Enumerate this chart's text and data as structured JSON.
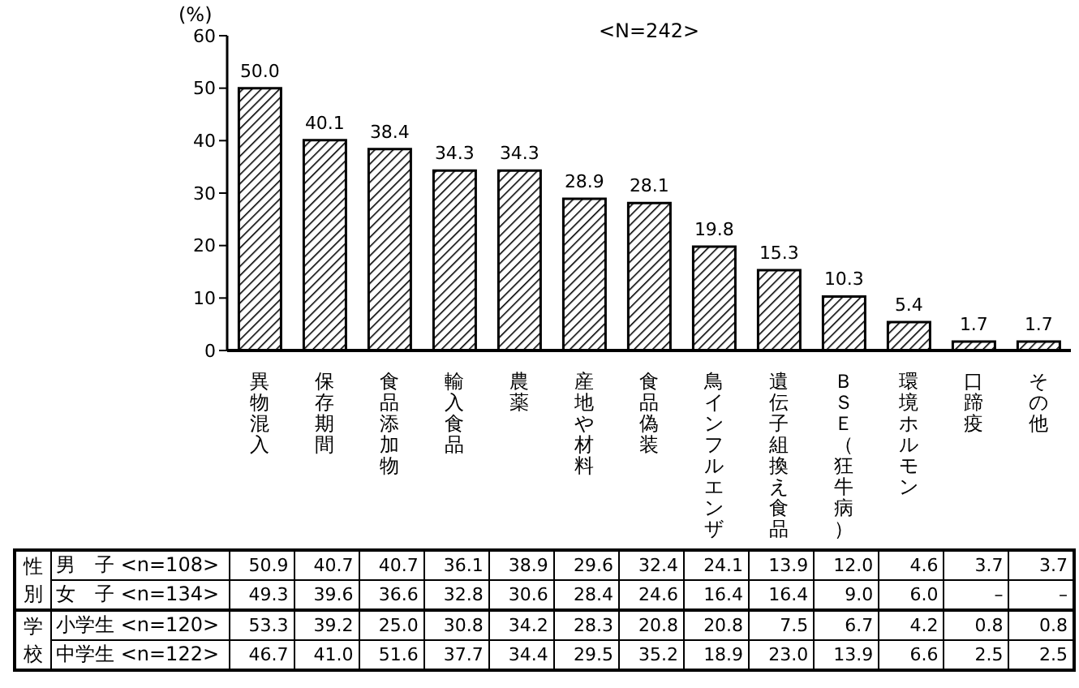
{
  "chart_data": [
    {
      "type": "bar",
      "subtitle": "<N=242>",
      "ylabel": "(%)",
      "categories": [
        "異物混入",
        "保存期間",
        "食品添加物",
        "輸入食品",
        "農薬",
        "産地や材料",
        "食品偽装",
        "鳥インフルエンザ",
        "遺伝子組換え食品",
        "ＢＳＥ（狂牛病）",
        "環境ホルモン",
        "口蹄疫",
        "その他"
      ],
      "series": [
        {
          "color": "#000000",
          "values": [
            50.0,
            40.1,
            38.4,
            34.3,
            34.3,
            28.9,
            28.1,
            19.8,
            15.3,
            10.3,
            5.4,
            1.7,
            1.7
          ],
          "value_labels": [
            "50.0",
            "40.1",
            "38.4",
            "34.3",
            "34.3",
            "28.9",
            "28.1",
            "19.8",
            "15.3",
            "10.3",
            "5.4",
            "1.7",
            "1.7"
          ]
        }
      ],
      "ylim": [
        0,
        60
      ],
      "yticks": [
        0,
        10,
        20,
        30,
        40,
        50,
        60
      ]
    },
    {
      "type": "heatmap",
      "categories": [
        null,
        null,
        null,
        null,
        null,
        null,
        null,
        null,
        null,
        null,
        null,
        null,
        null
      ],
      "y_categories": [
        "男　子 <n=108>",
        "女　子 <n=134>",
        "小学生 <n=120>",
        "中学生 <n=122>"
      ],
      "annotations": [
        "性別",
        "学校"
      ],
      "cells": [
        [
          50.9,
          40.7,
          40.7,
          36.1,
          38.9,
          29.6,
          32.4,
          24.1,
          13.9,
          12.0,
          4.6,
          3.7,
          3.7
        ],
        [
          49.3,
          39.6,
          36.6,
          32.8,
          30.6,
          28.4,
          24.6,
          16.4,
          16.4,
          9.0,
          6.0,
          null,
          null
        ],
        [
          53.3,
          39.2,
          25.0,
          30.8,
          34.2,
          28.3,
          20.8,
          20.8,
          7.5,
          6.7,
          4.2,
          0.8,
          0.8
        ],
        [
          46.7,
          41.0,
          51.6,
          37.7,
          34.4,
          29.5,
          35.2,
          18.9,
          23.0,
          13.9,
          6.6,
          2.5,
          2.5
        ]
      ],
      "cell_labels": [
        [
          "50.9",
          "40.7",
          "40.7",
          "36.1",
          "38.9",
          "29.6",
          "32.4",
          "24.1",
          "13.9",
          "12.0",
          "4.6",
          "3.7",
          "3.7"
        ],
        [
          "49.3",
          "39.6",
          "36.6",
          "32.8",
          "30.6",
          "28.4",
          "24.6",
          "16.4",
          "16.4",
          "9.0",
          "6.0",
          "–",
          "–"
        ],
        [
          "53.3",
          "39.2",
          "25.0",
          "30.8",
          "34.2",
          "28.3",
          "20.8",
          "20.8",
          "7.5",
          "6.7",
          "4.2",
          "0.8",
          "0.8"
        ],
        [
          "46.7",
          "41.0",
          "51.6",
          "37.7",
          "34.4",
          "29.5",
          "35.2",
          "18.9",
          "23.0",
          "13.9",
          "6.6",
          "2.5",
          "2.5"
        ]
      ]
    }
  ]
}
